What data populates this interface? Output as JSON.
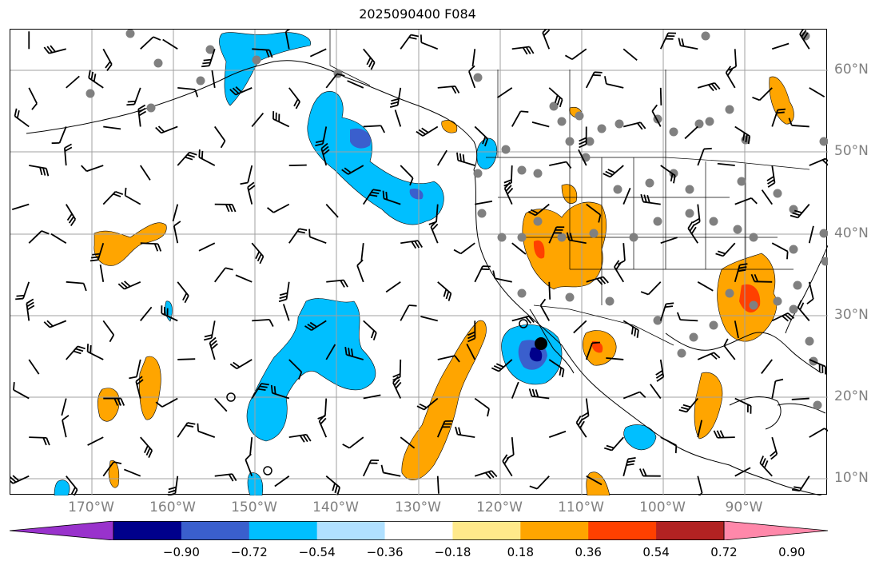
{
  "title": "2025090400 F084",
  "lat_labels": [
    "60°N",
    "50°N",
    "40°N",
    "30°N",
    "20°N",
    "10°N"
  ],
  "lon_labels": [
    "170°W",
    "160°W",
    "150°W",
    "140°W",
    "130°W",
    "120°W",
    "110°W",
    "100°W",
    "90°W"
  ],
  "colorbar": {
    "colors": [
      "#9932cc",
      "#00008b",
      "#3a5fcd",
      "#00bfff",
      "#b0e0ff",
      "#ffffff",
      "#ffe98a",
      "#ffa500",
      "#ff4000",
      "#b22222",
      "#ff88aa"
    ],
    "ticks": [
      "−0.90",
      "−0.72",
      "−0.54",
      "−0.36",
      "−0.18",
      "0.18",
      "0.36",
      "0.54",
      "0.72",
      "0.90"
    ]
  },
  "map": {
    "field_colors": {
      "negative_light": "#00bfff",
      "negative_dark": "#3a5fcd",
      "negative_darkest": "#00008b",
      "positive_light": "#ffa500",
      "positive_strong": "#ff4000",
      "station_dot": "#808080",
      "grid": "#a0a0a0",
      "coast": "#000000"
    },
    "wind_barbs": "black",
    "station_dots": "grey"
  }
}
